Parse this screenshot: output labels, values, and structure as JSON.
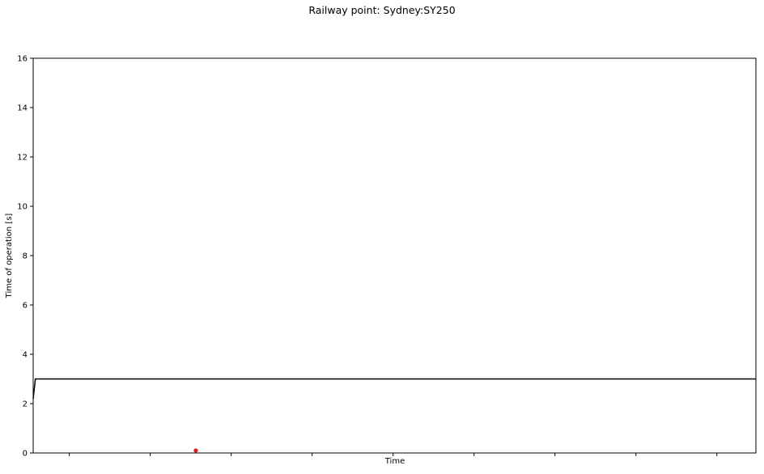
{
  "chart_data": {
    "type": "line",
    "title": "Railway point: Sydney:SY250",
    "xlabel": "Time",
    "ylabel": "Time of operation [s]",
    "ylim": [
      0,
      16
    ],
    "yticks": [
      0,
      2,
      4,
      6,
      8,
      10,
      12,
      14,
      16
    ],
    "xlim": [
      0,
      1
    ],
    "x_tick_positions": [
      0.05,
      0.162,
      0.274,
      0.386,
      0.498,
      0.61,
      0.722,
      0.834,
      0.946
    ],
    "grid": false,
    "series": [
      {
        "kind": "line",
        "color": "#000000",
        "points": [
          [
            0.0,
            2.2
          ],
          [
            0.003,
            3.0
          ],
          [
            1.0,
            3.0
          ]
        ]
      },
      {
        "kind": "scatter",
        "color": "#e31a1c",
        "points": [
          [
            0.225,
            0.1
          ]
        ]
      }
    ]
  }
}
